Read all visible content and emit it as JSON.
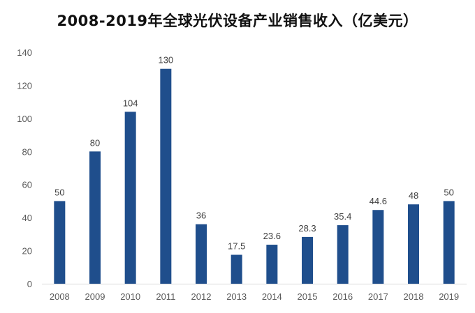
{
  "chart_data": {
    "type": "bar",
    "title": "2008-2019年全球光伏设备产业销售收入（亿美元）",
    "categories": [
      "2008",
      "2009",
      "2010",
      "2011",
      "2012",
      "2013",
      "2014",
      "2015",
      "2016",
      "2017",
      "2018",
      "2019"
    ],
    "values": [
      50,
      80,
      104,
      130,
      36,
      17.5,
      23.6,
      28.3,
      35.4,
      44.6,
      48,
      50
    ],
    "data_labels": [
      "50",
      "80",
      "104",
      "130",
      "36",
      "17.5",
      "23.6",
      "28.3",
      "35.4",
      "44.6",
      "48",
      "50"
    ],
    "yticks": [
      0,
      20,
      40,
      60,
      80,
      100,
      120,
      140
    ],
    "ylim": [
      0,
      140
    ],
    "xlabel": "",
    "ylabel": "",
    "grid": false,
    "legend": "none",
    "bar_color": "#1F4E8C",
    "axis_color": "#D9D9D9"
  }
}
